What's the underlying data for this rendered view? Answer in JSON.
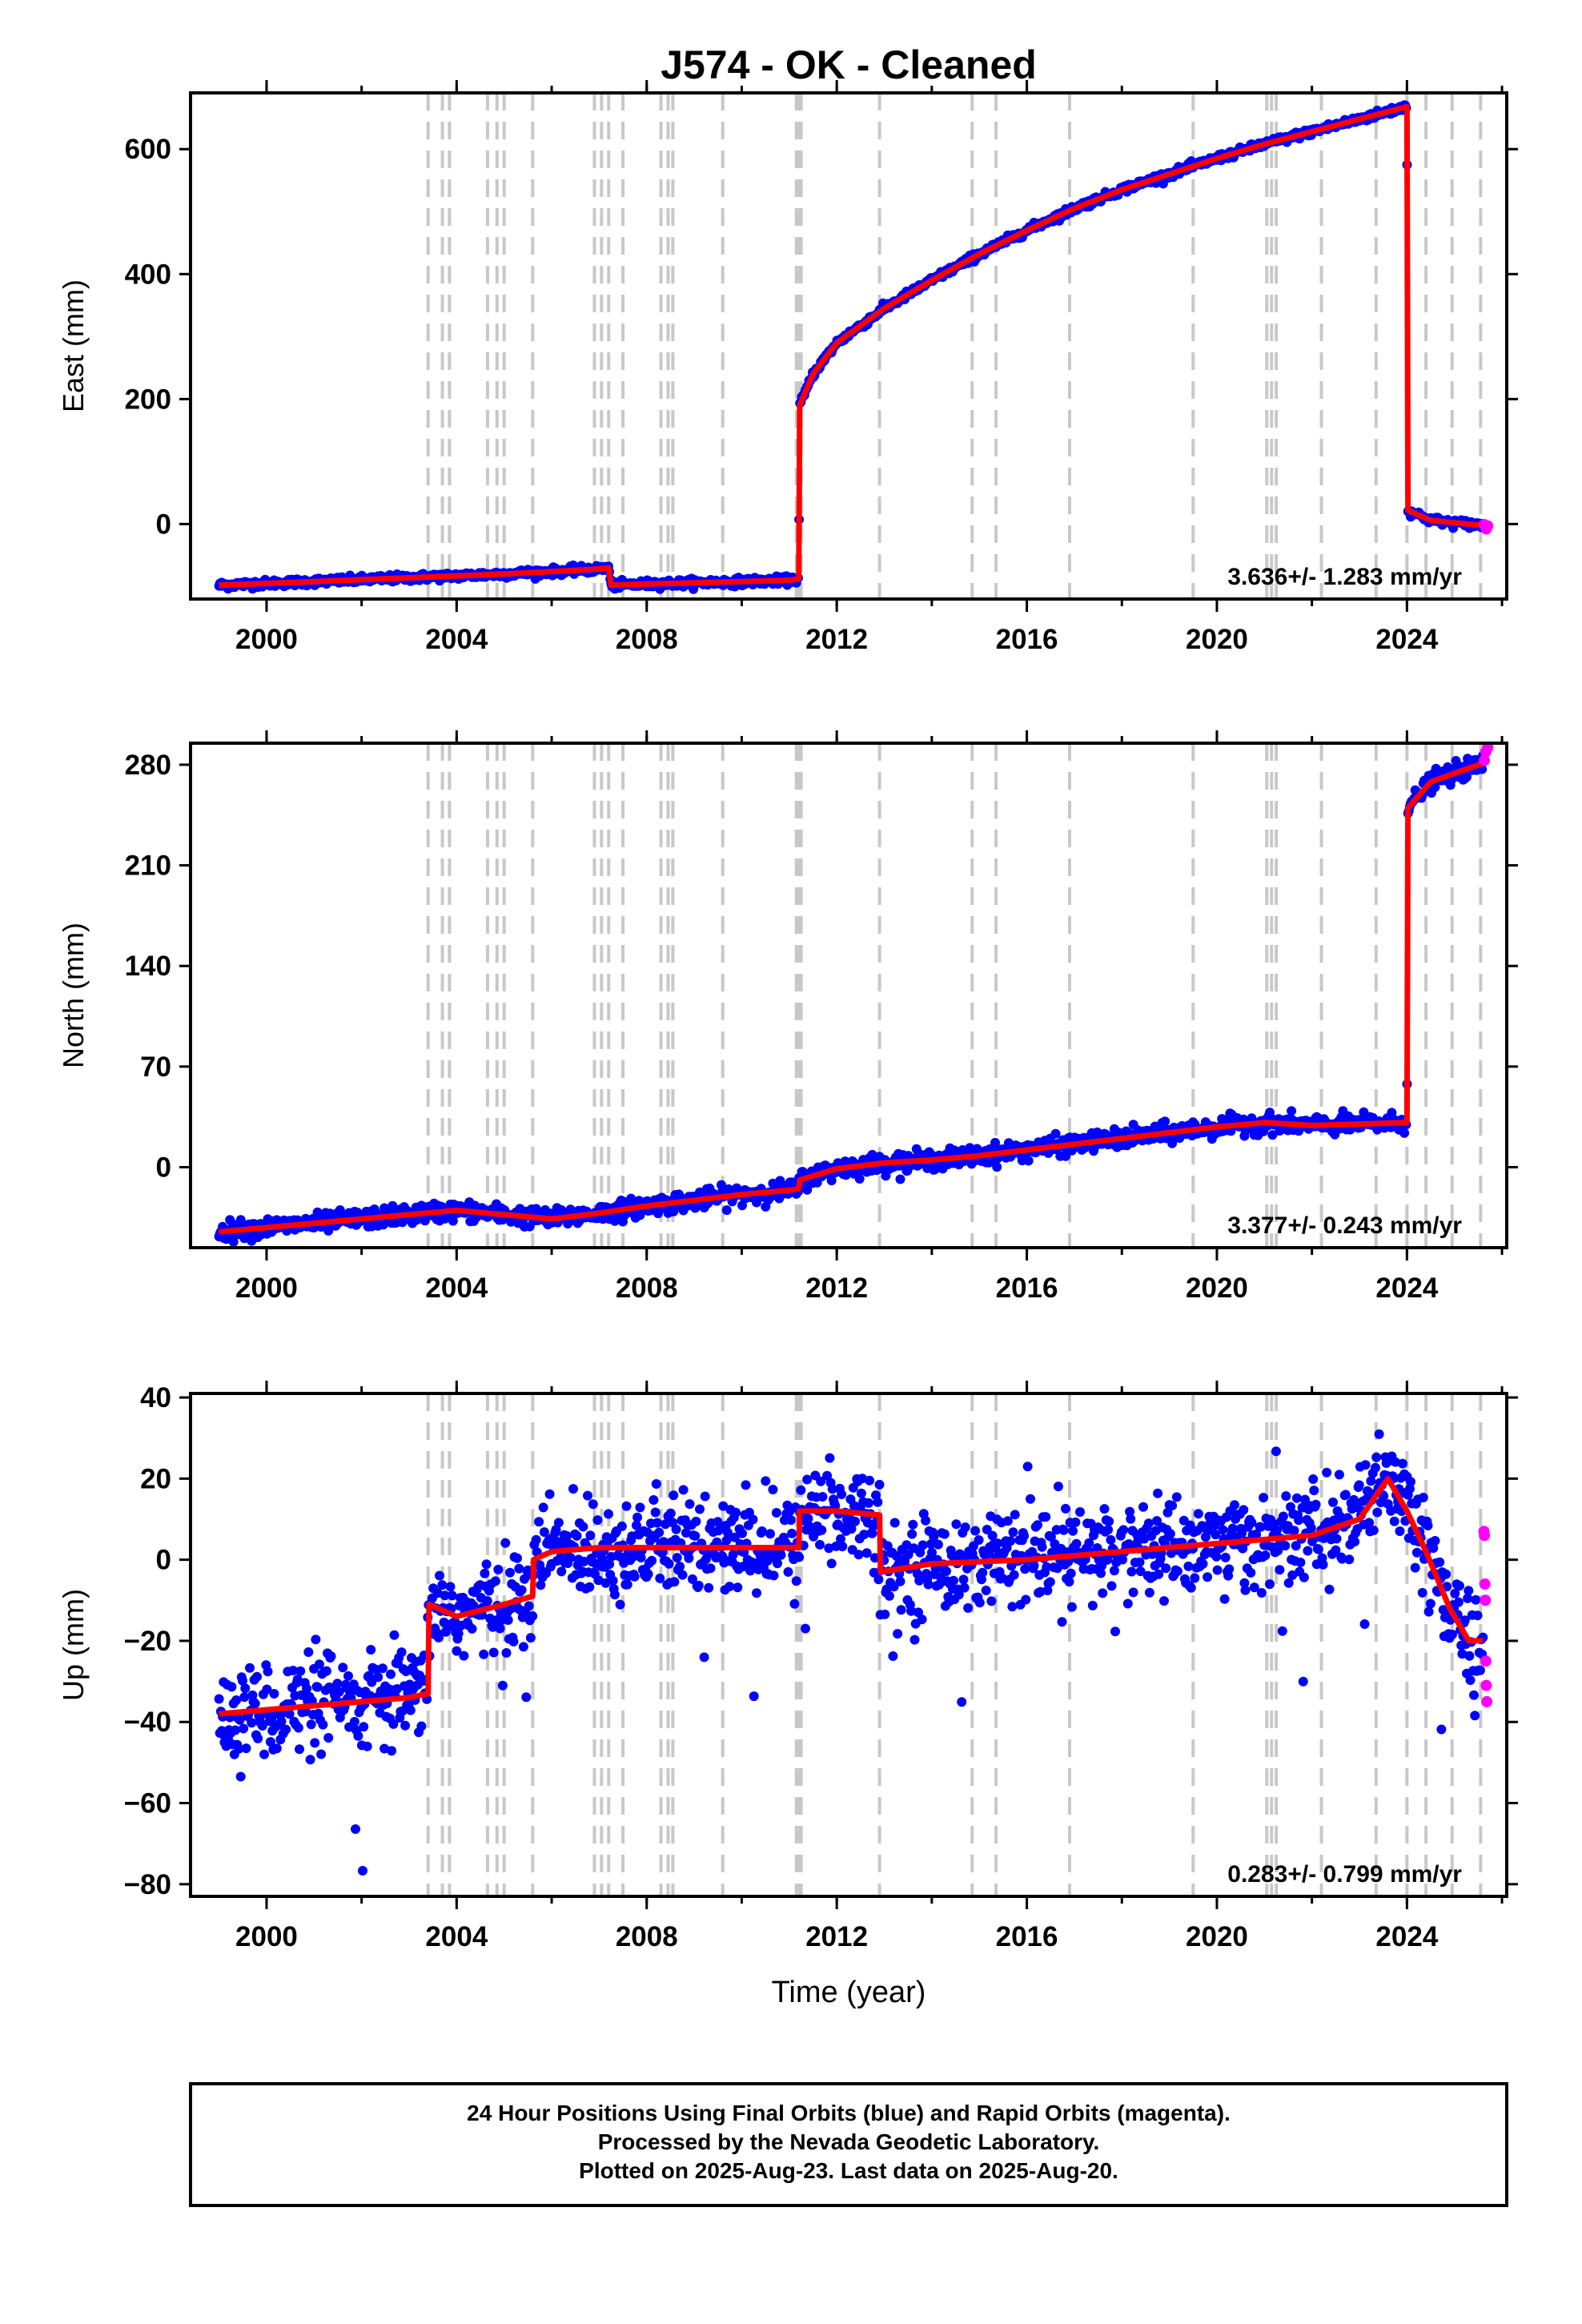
{
  "chart_data": {
    "type": "scatter",
    "title": "J574  - OK - Cleaned",
    "xlabel": "Time (year)",
    "xlim": [
      1998.4,
      2026.1
    ],
    "xticks": [
      2000,
      2004,
      2008,
      2012,
      2016,
      2020,
      2024
    ],
    "xtick_labels": [
      "2000",
      "2004",
      "2008",
      "2012",
      "2016",
      "2020",
      "2024"
    ],
    "step_lines": [
      2003.4,
      2003.7,
      2003.85,
      2004.65,
      2004.85,
      2005.0,
      2005.6,
      2006.9,
      2007.05,
      2007.2,
      2007.5,
      2008.3,
      2008.45,
      2008.55,
      2009.6,
      2011.15,
      2011.2,
      2011.25,
      2012.9,
      2014.85,
      2015.35,
      2016.9,
      2019.5,
      2021.05,
      2021.15,
      2021.25,
      2022.2,
      2023.35,
      2024.0,
      2024.4,
      2024.95,
      2025.55
    ],
    "series": [
      {
        "name": "Final Orbits",
        "color": "#0000ff"
      },
      {
        "name": "Rapid Orbits",
        "color": "#ff00ff"
      },
      {
        "name": "Model",
        "color": "#ff0000"
      }
    ],
    "panels": [
      {
        "ylabel": "East (mm)",
        "ylim": [
          -120,
          690
        ],
        "yticks": [
          0,
          200,
          400,
          600
        ],
        "ytick_labels": [
          "0",
          "200",
          "400",
          "600"
        ],
        "rate": "3.636+/- 1.283 mm/yr",
        "model": {
          "x": [
            1999.0,
            2000.0,
            2001.0,
            2002.0,
            2003.0,
            2004.0,
            2005.0,
            2006.0,
            2007.0,
            2007.2,
            2007.25,
            2008.0,
            2009.0,
            2010.0,
            2011.0,
            2011.2,
            2011.22,
            2011.5,
            2012.0,
            2013.0,
            2014.0,
            2015.0,
            2016.0,
            2017.0,
            2018.0,
            2019.0,
            2020.0,
            2021.0,
            2022.0,
            2023.0,
            2024.0,
            2024.02,
            2024.5,
            2025.0,
            2025.6
          ],
          "y": [
            -98,
            -95,
            -92,
            -89,
            -86,
            -83,
            -80,
            -76,
            -72,
            -70,
            -98,
            -96,
            -94,
            -92,
            -90,
            -88,
            190,
            240,
            290,
            345,
            390,
            432,
            470,
            505,
            535,
            560,
            585,
            608,
            628,
            648,
            668,
            22,
            6,
            2,
            -2
          ]
        },
        "final": {
          "x": [
            1999.0,
            2003.4,
            2005.0,
            2007.2,
            2011.2,
            2024.0,
            2025.6
          ],
          "y": [
            -98,
            -85,
            -80,
            -70,
            -88,
            668,
            -2
          ],
          "scatter_sd": 3
        },
        "rapid": {
          "x": [
            2025.63,
            2025.67,
            2025.7
          ],
          "y": [
            -1,
            -8,
            -3
          ]
        }
      },
      {
        "ylabel": "North (mm)",
        "ylim": [
          -56,
          295
        ],
        "yticks": [
          0,
          70,
          140,
          210,
          280
        ],
        "ytick_labels": [
          "0",
          "70",
          "140",
          "210",
          "280"
        ],
        "rate": "3.377+/- 0.243 mm/yr",
        "model": {
          "x": [
            1999.0,
            2000.0,
            2001.0,
            2002.0,
            2003.0,
            2004.0,
            2005.0,
            2006.0,
            2007.0,
            2008.0,
            2009.0,
            2010.0,
            2011.0,
            2011.2,
            2011.22,
            2012.0,
            2013.0,
            2014.0,
            2015.0,
            2016.0,
            2017.0,
            2018.0,
            2019.0,
            2020.0,
            2021.0,
            2022.0,
            2023.0,
            2024.0,
            2024.02,
            2024.5,
            2025.0,
            2025.6
          ],
          "y": [
            -45,
            -42,
            -39,
            -36,
            -33,
            -30,
            -33,
            -36,
            -32,
            -27,
            -23,
            -19,
            -16,
            -15,
            -9,
            -1,
            3,
            5,
            8,
            12,
            16,
            20,
            24,
            28,
            31,
            29,
            30,
            31,
            250,
            268,
            274,
            281
          ]
        },
        "final": {
          "x": [
            1999.0,
            2011.2,
            2024.0,
            2025.6
          ],
          "y": [
            -45,
            -15,
            31,
            281
          ],
          "scatter_sd": 3.2
        },
        "rapid": {
          "x": [
            2025.63,
            2025.66,
            2025.7
          ],
          "y": [
            283,
            289,
            292
          ]
        }
      },
      {
        "ylabel": "Up (mm)",
        "ylim": [
          -83,
          41
        ],
        "yticks": [
          -80,
          -60,
          -40,
          -20,
          0,
          20,
          40
        ],
        "ytick_labels": [
          "−80",
          "−60",
          "−40",
          "−20",
          "0",
          "20",
          "40"
        ],
        "rate": "0.283+/- 0.799 mm/yr",
        "model": {
          "x": [
            1999.0,
            2000.0,
            2001.0,
            2002.0,
            2003.0,
            2003.4,
            2003.42,
            2004.0,
            2005.0,
            2005.6,
            2005.62,
            2006.0,
            2007.0,
            2008.0,
            2009.0,
            2010.0,
            2011.0,
            2011.2,
            2011.22,
            2012.0,
            2012.9,
            2012.92,
            2014.0,
            2016.0,
            2018.0,
            2020.0,
            2022.0,
            2023.0,
            2023.6,
            2024.0,
            2024.4,
            2024.9,
            2025.3,
            2025.6
          ],
          "y": [
            -38,
            -37,
            -36,
            -35,
            -34,
            -33,
            -11,
            -14,
            -11,
            -9,
            0,
            2,
            3,
            3,
            3,
            3,
            3,
            3,
            12,
            12,
            11,
            -3,
            -1,
            0,
            2,
            4,
            6,
            10,
            20,
            12,
            2,
            -12,
            -20,
            -20
          ]
        },
        "final": {
          "x": [
            1999.0,
            2003.4,
            2005.6,
            2011.2,
            2012.9,
            2023.6,
            2024.4,
            2025.6
          ],
          "y": [
            -38,
            -33,
            -9,
            3,
            11,
            20,
            2,
            -20
          ],
          "scatter_sd": 6
        },
        "rapid": {
          "x": [
            2025.62,
            2025.63,
            2025.64,
            2025.65,
            2025.66,
            2025.67,
            2025.68
          ],
          "y": [
            7,
            6,
            -6,
            -10,
            -25,
            -31,
            -35
          ]
        }
      }
    ],
    "footer": [
      "24 Hour Positions Using Final Orbits (blue) and Rapid Orbits (magenta).",
      "Processed by the Nevada Geodetic Laboratory.",
      "Plotted on 2025-Aug-23. Last data on 2025-Aug-20."
    ]
  }
}
